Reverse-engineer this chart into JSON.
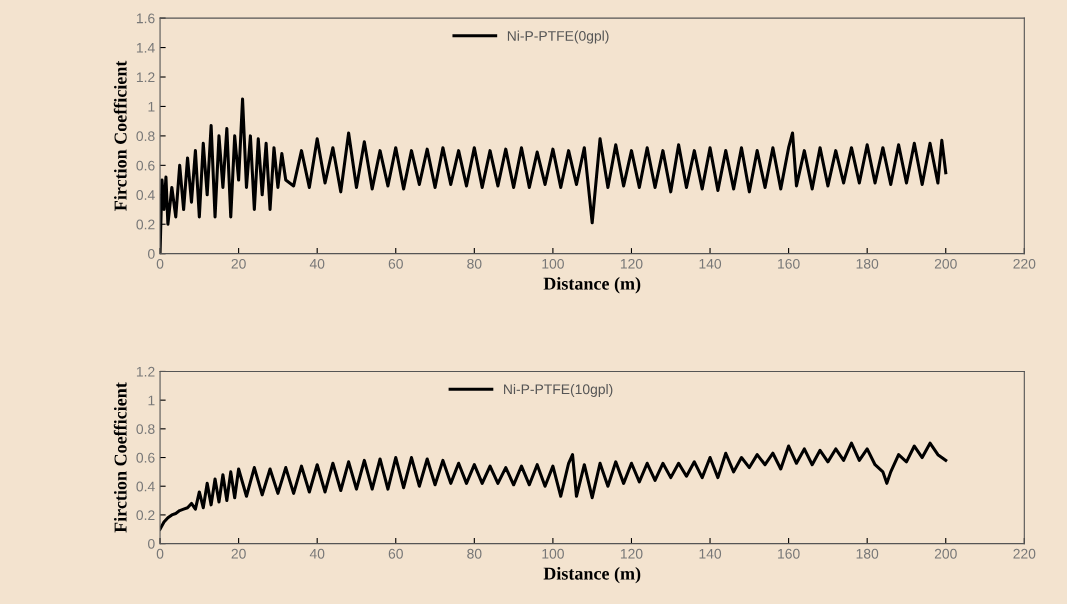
{
  "chart_data": [
    {
      "type": "line",
      "xlabel": "Distance (m)",
      "ylabel": "Firction Coefficient",
      "xlim": [
        0,
        220
      ],
      "xticks": [
        0,
        20,
        40,
        60,
        80,
        100,
        120,
        140,
        160,
        180,
        200,
        220
      ],
      "ylim": [
        0,
        1.6
      ],
      "yticks": [
        0,
        0.2,
        0.4,
        0.6,
        0.8,
        1,
        1.2,
        1.4,
        1.6
      ],
      "legend": "top",
      "grid": false,
      "series": [
        {
          "name": "Ni-P-PTFE(0gpl)",
          "color": "#000000",
          "x": [
            0,
            0.5,
            1,
            1.5,
            2,
            3,
            4,
            5,
            6,
            7,
            8,
            9,
            10,
            11,
            12,
            13,
            14,
            15,
            16,
            17,
            18,
            19,
            20,
            21,
            22,
            23,
            24,
            25,
            26,
            27,
            28,
            29,
            30,
            31,
            32,
            34,
            36,
            38,
            40,
            42,
            44,
            46,
            48,
            50,
            52,
            54,
            56,
            58,
            60,
            62,
            64,
            66,
            68,
            70,
            72,
            74,
            76,
            78,
            80,
            82,
            84,
            86,
            88,
            90,
            92,
            94,
            96,
            98,
            100,
            102,
            104,
            106,
            108,
            110,
            112,
            114,
            116,
            118,
            120,
            122,
            124,
            126,
            128,
            130,
            132,
            134,
            136,
            138,
            140,
            142,
            144,
            146,
            148,
            150,
            152,
            154,
            156,
            158,
            160,
            161,
            162,
            164,
            166,
            168,
            170,
            172,
            174,
            176,
            178,
            180,
            182,
            184,
            186,
            188,
            190,
            192,
            194,
            196,
            198,
            199,
            200
          ],
          "values": [
            0.0,
            0.5,
            0.3,
            0.52,
            0.2,
            0.45,
            0.25,
            0.6,
            0.3,
            0.65,
            0.35,
            0.7,
            0.25,
            0.75,
            0.4,
            0.87,
            0.25,
            0.8,
            0.45,
            0.85,
            0.25,
            0.8,
            0.5,
            1.05,
            0.45,
            0.8,
            0.3,
            0.78,
            0.4,
            0.75,
            0.3,
            0.72,
            0.45,
            0.68,
            0.5,
            0.46,
            0.7,
            0.45,
            0.78,
            0.48,
            0.72,
            0.42,
            0.82,
            0.45,
            0.76,
            0.44,
            0.7,
            0.46,
            0.72,
            0.44,
            0.7,
            0.47,
            0.71,
            0.45,
            0.72,
            0.47,
            0.7,
            0.46,
            0.72,
            0.45,
            0.7,
            0.46,
            0.71,
            0.45,
            0.72,
            0.45,
            0.69,
            0.47,
            0.71,
            0.45,
            0.7,
            0.47,
            0.72,
            0.21,
            0.78,
            0.45,
            0.74,
            0.46,
            0.7,
            0.45,
            0.72,
            0.45,
            0.7,
            0.42,
            0.74,
            0.45,
            0.7,
            0.44,
            0.72,
            0.43,
            0.7,
            0.44,
            0.72,
            0.42,
            0.7,
            0.45,
            0.72,
            0.44,
            0.72,
            0.82,
            0.46,
            0.7,
            0.44,
            0.72,
            0.46,
            0.7,
            0.48,
            0.72,
            0.48,
            0.74,
            0.48,
            0.72,
            0.47,
            0.74,
            0.48,
            0.75,
            0.47,
            0.75,
            0.48,
            0.77,
            0.55
          ]
        }
      ]
    },
    {
      "type": "line",
      "xlabel": "Distance (m)",
      "ylabel": "Firction Coefficient",
      "xlim": [
        0,
        220
      ],
      "xticks": [
        0,
        20,
        40,
        60,
        80,
        100,
        120,
        140,
        160,
        180,
        200,
        220
      ],
      "ylim": [
        0,
        1.2
      ],
      "yticks": [
        0,
        0.2,
        0.4,
        0.6,
        0.8,
        1,
        1.2
      ],
      "legend": "top",
      "grid": false,
      "series": [
        {
          "name": "Ni-P-PTFE(10gpl)",
          "color": "#000000",
          "x": [
            0,
            1,
            2,
            3,
            4,
            5,
            6,
            7,
            8,
            9,
            10,
            11,
            12,
            13,
            14,
            15,
            16,
            17,
            18,
            19,
            20,
            22,
            24,
            26,
            28,
            30,
            32,
            34,
            36,
            38,
            40,
            42,
            44,
            46,
            48,
            50,
            52,
            54,
            56,
            58,
            60,
            62,
            64,
            66,
            68,
            70,
            72,
            74,
            76,
            78,
            80,
            82,
            84,
            86,
            88,
            90,
            92,
            94,
            96,
            98,
            100,
            102,
            104,
            105,
            106,
            108,
            110,
            112,
            114,
            116,
            118,
            120,
            122,
            124,
            126,
            128,
            130,
            132,
            134,
            136,
            138,
            140,
            142,
            144,
            146,
            148,
            150,
            152,
            154,
            156,
            158,
            160,
            162,
            164,
            166,
            168,
            170,
            172,
            174,
            176,
            178,
            180,
            182,
            184,
            185,
            186,
            188,
            190,
            192,
            194,
            196,
            198,
            200
          ],
          "values": [
            0.1,
            0.15,
            0.18,
            0.2,
            0.21,
            0.23,
            0.24,
            0.25,
            0.28,
            0.24,
            0.36,
            0.25,
            0.42,
            0.27,
            0.45,
            0.29,
            0.48,
            0.3,
            0.5,
            0.32,
            0.52,
            0.33,
            0.53,
            0.34,
            0.52,
            0.35,
            0.53,
            0.35,
            0.54,
            0.36,
            0.55,
            0.36,
            0.56,
            0.37,
            0.57,
            0.38,
            0.58,
            0.38,
            0.59,
            0.38,
            0.6,
            0.39,
            0.6,
            0.4,
            0.59,
            0.41,
            0.58,
            0.42,
            0.56,
            0.42,
            0.55,
            0.42,
            0.54,
            0.42,
            0.53,
            0.41,
            0.54,
            0.41,
            0.55,
            0.4,
            0.54,
            0.33,
            0.56,
            0.62,
            0.33,
            0.55,
            0.32,
            0.56,
            0.4,
            0.57,
            0.42,
            0.56,
            0.43,
            0.56,
            0.44,
            0.56,
            0.46,
            0.56,
            0.47,
            0.57,
            0.46,
            0.6,
            0.46,
            0.63,
            0.5,
            0.6,
            0.53,
            0.62,
            0.55,
            0.63,
            0.52,
            0.68,
            0.56,
            0.66,
            0.55,
            0.65,
            0.57,
            0.66,
            0.58,
            0.7,
            0.58,
            0.66,
            0.55,
            0.5,
            0.42,
            0.5,
            0.62,
            0.57,
            0.68,
            0.6,
            0.7,
            0.62,
            0.58
          ]
        }
      ]
    }
  ]
}
